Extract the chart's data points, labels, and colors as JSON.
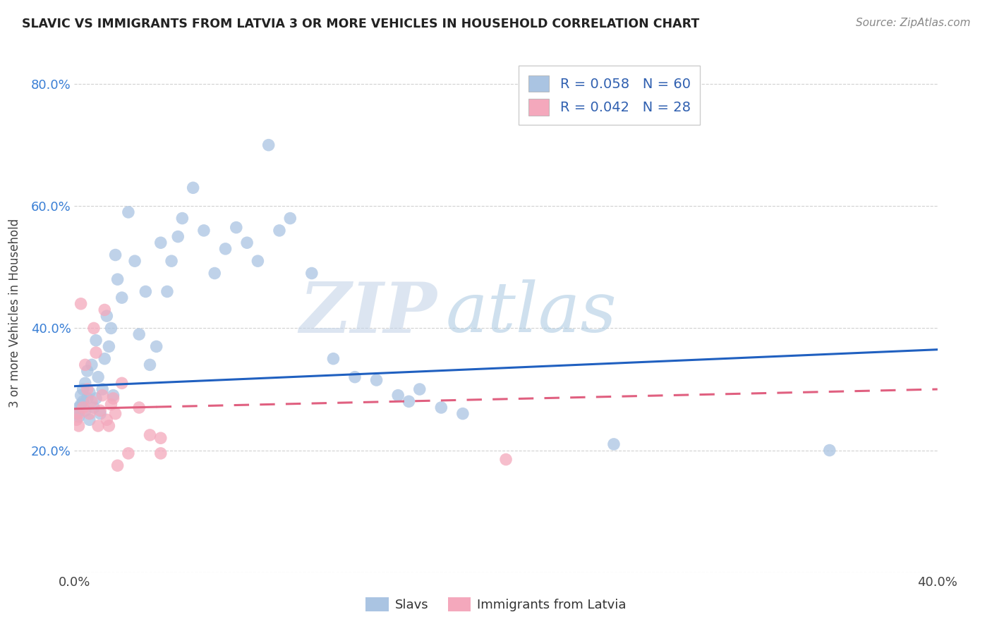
{
  "title": "SLAVIC VS IMMIGRANTS FROM LATVIA 3 OR MORE VEHICLES IN HOUSEHOLD CORRELATION CHART",
  "source": "Source: ZipAtlas.com",
  "ylabel": "3 or more Vehicles in Household",
  "xmin": 0.0,
  "xmax": 0.4,
  "ymin": 0.0,
  "ymax": 0.85,
  "slavs_R": 0.058,
  "slavs_N": 60,
  "latvia_R": 0.042,
  "latvia_N": 28,
  "slavs_color": "#aac4e2",
  "latvia_color": "#f4a8bc",
  "slavs_line_color": "#2060c0",
  "latvia_line_color": "#e06080",
  "legend_label_slavs": "Slavs",
  "legend_label_latvia": "Immigrants from Latvia",
  "watermark_zip": "ZIP",
  "watermark_atlas": "atlas",
  "slavs_trend_y0": 0.305,
  "slavs_trend_y1": 0.365,
  "latvia_trend_y0": 0.268,
  "latvia_trend_y1": 0.3,
  "slavs_x": [
    0.001,
    0.002,
    0.002,
    0.003,
    0.003,
    0.004,
    0.004,
    0.005,
    0.005,
    0.006,
    0.006,
    0.007,
    0.007,
    0.008,
    0.009,
    0.01,
    0.01,
    0.011,
    0.012,
    0.013,
    0.014,
    0.015,
    0.016,
    0.017,
    0.018,
    0.019,
    0.02,
    0.022,
    0.025,
    0.028,
    0.03,
    0.033,
    0.035,
    0.038,
    0.04,
    0.043,
    0.045,
    0.048,
    0.05,
    0.055,
    0.06,
    0.065,
    0.07,
    0.075,
    0.08,
    0.085,
    0.09,
    0.095,
    0.1,
    0.11,
    0.12,
    0.13,
    0.14,
    0.15,
    0.155,
    0.16,
    0.17,
    0.18,
    0.25,
    0.35
  ],
  "slavs_y": [
    0.26,
    0.27,
    0.255,
    0.29,
    0.275,
    0.3,
    0.28,
    0.31,
    0.265,
    0.33,
    0.285,
    0.25,
    0.295,
    0.34,
    0.27,
    0.38,
    0.285,
    0.32,
    0.26,
    0.3,
    0.35,
    0.42,
    0.37,
    0.4,
    0.29,
    0.52,
    0.48,
    0.45,
    0.59,
    0.51,
    0.39,
    0.46,
    0.34,
    0.37,
    0.54,
    0.46,
    0.51,
    0.55,
    0.58,
    0.63,
    0.56,
    0.49,
    0.53,
    0.565,
    0.54,
    0.51,
    0.7,
    0.56,
    0.58,
    0.49,
    0.35,
    0.32,
    0.315,
    0.29,
    0.28,
    0.3,
    0.27,
    0.26,
    0.21,
    0.2
  ],
  "latvia_x": [
    0.001,
    0.002,
    0.002,
    0.003,
    0.004,
    0.005,
    0.006,
    0.007,
    0.008,
    0.009,
    0.01,
    0.011,
    0.012,
    0.013,
    0.014,
    0.015,
    0.016,
    0.017,
    0.018,
    0.019,
    0.02,
    0.022,
    0.025,
    0.03,
    0.035,
    0.04,
    0.04,
    0.2
  ],
  "latvia_y": [
    0.25,
    0.26,
    0.24,
    0.44,
    0.27,
    0.34,
    0.3,
    0.26,
    0.28,
    0.4,
    0.36,
    0.24,
    0.265,
    0.29,
    0.43,
    0.25,
    0.24,
    0.275,
    0.285,
    0.26,
    0.175,
    0.31,
    0.195,
    0.27,
    0.225,
    0.195,
    0.22,
    0.185
  ]
}
